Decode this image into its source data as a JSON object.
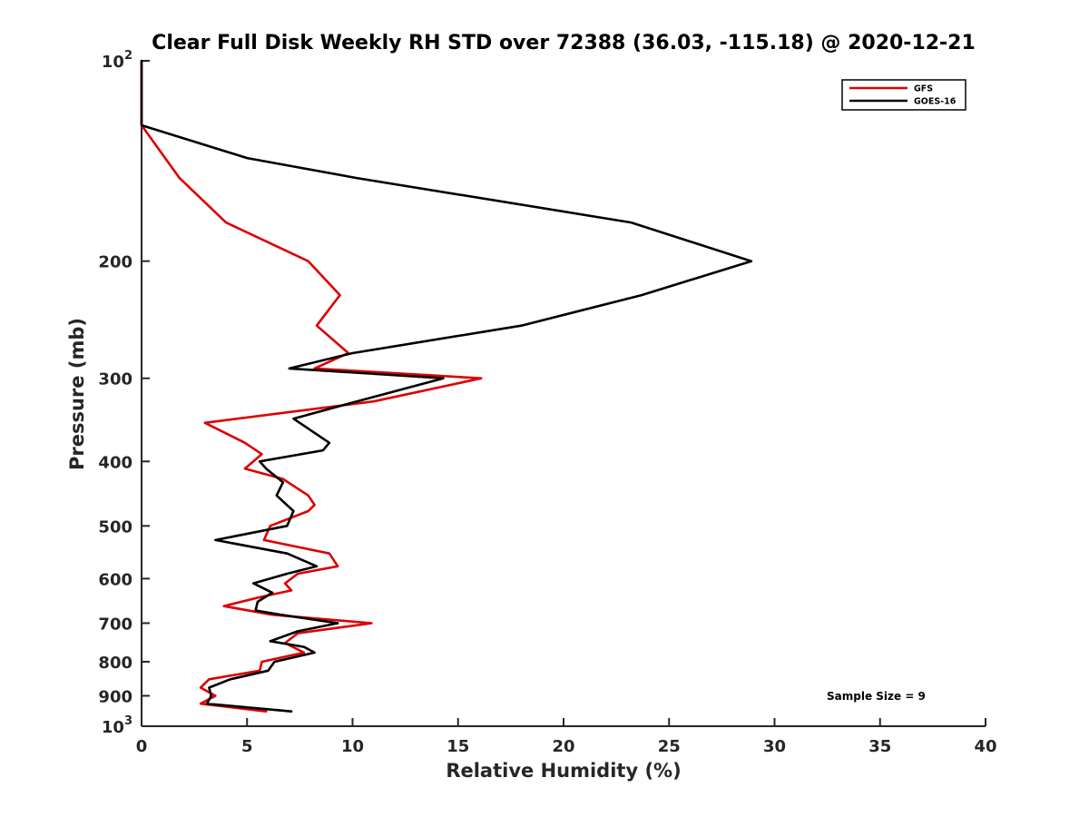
{
  "chart_data": {
    "type": "line",
    "title": "Clear Full Disk Weekly RH STD over 72388 (36.03, -115.18) @ 2020-12-21",
    "xlabel": "Relative Humidity (%)",
    "ylabel": "Pressure (mb)",
    "xlim": [
      0,
      40
    ],
    "ylim": [
      100,
      1000
    ],
    "y_scale": "log",
    "y_reversed": true,
    "x_ticks": [
      "0",
      "5",
      "10",
      "15",
      "20",
      "25",
      "30",
      "35",
      "40"
    ],
    "y_ticks": [
      {
        "value": 100,
        "base": "10",
        "exp": "2"
      },
      {
        "value": 200,
        "label": "200"
      },
      {
        "value": 300,
        "label": "300"
      },
      {
        "value": 400,
        "label": "400"
      },
      {
        "value": 500,
        "label": "500"
      },
      {
        "value": 600,
        "label": "600"
      },
      {
        "value": 700,
        "label": "700"
      },
      {
        "value": 800,
        "label": "800"
      },
      {
        "value": 900,
        "label": "900"
      },
      {
        "value": 1000,
        "base": "10",
        "exp": "3"
      }
    ],
    "legend_position": "top-right",
    "annotation": "Sample Size = 9",
    "series": [
      {
        "name": "GFS",
        "color": "#dd0000",
        "points": [
          [
            0,
            100
          ],
          [
            0,
            125
          ],
          [
            1.8,
            150
          ],
          [
            4.0,
            175
          ],
          [
            7.9,
            200
          ],
          [
            9.4,
            225
          ],
          [
            8.3,
            250
          ],
          [
            9.8,
            275
          ],
          [
            8.2,
            290
          ],
          [
            16.1,
            300
          ],
          [
            11.0,
            325
          ],
          [
            3.0,
            350
          ],
          [
            4.9,
            375
          ],
          [
            5.7,
            390
          ],
          [
            4.9,
            410
          ],
          [
            6.7,
            425
          ],
          [
            7.9,
            450
          ],
          [
            8.2,
            465
          ],
          [
            7.9,
            475
          ],
          [
            6.1,
            500
          ],
          [
            5.8,
            525
          ],
          [
            8.9,
            550
          ],
          [
            9.3,
            575
          ],
          [
            7.4,
            590
          ],
          [
            6.8,
            610
          ],
          [
            7.1,
            625
          ],
          [
            5.6,
            640
          ],
          [
            3.9,
            660
          ],
          [
            6.2,
            680
          ],
          [
            10.9,
            700
          ],
          [
            7.4,
            725
          ],
          [
            6.8,
            750
          ],
          [
            7.7,
            775
          ],
          [
            5.7,
            800
          ],
          [
            5.6,
            825
          ],
          [
            3.2,
            850
          ],
          [
            2.8,
            875
          ],
          [
            3.5,
            900
          ],
          [
            2.8,
            925
          ],
          [
            5.9,
            950
          ]
        ]
      },
      {
        "name": "GOES-16",
        "color": "#000000",
        "points": [
          [
            0,
            100
          ],
          [
            0,
            125
          ],
          [
            5.0,
            140
          ],
          [
            10.2,
            150
          ],
          [
            23.2,
            175
          ],
          [
            28.9,
            200
          ],
          [
            23.7,
            225
          ],
          [
            18.0,
            250
          ],
          [
            10.0,
            275
          ],
          [
            7.0,
            290
          ],
          [
            14.3,
            300
          ],
          [
            10.2,
            325
          ],
          [
            7.2,
            345
          ],
          [
            8.9,
            375
          ],
          [
            8.6,
            385
          ],
          [
            5.6,
            400
          ],
          [
            5.9,
            410
          ],
          [
            6.7,
            430
          ],
          [
            6.4,
            450
          ],
          [
            7.2,
            475
          ],
          [
            6.9,
            500
          ],
          [
            3.5,
            525
          ],
          [
            6.9,
            550
          ],
          [
            8.3,
            575
          ],
          [
            6.9,
            590
          ],
          [
            5.3,
            610
          ],
          [
            6.2,
            630
          ],
          [
            5.5,
            650
          ],
          [
            5.4,
            670
          ],
          [
            6.6,
            680
          ],
          [
            9.3,
            700
          ],
          [
            7.4,
            720
          ],
          [
            6.1,
            745
          ],
          [
            7.7,
            760
          ],
          [
            8.2,
            775
          ],
          [
            6.3,
            800
          ],
          [
            6.0,
            825
          ],
          [
            4.2,
            850
          ],
          [
            3.2,
            875
          ],
          [
            3.3,
            900
          ],
          [
            3.1,
            925
          ],
          [
            7.1,
            950
          ]
        ]
      }
    ]
  }
}
